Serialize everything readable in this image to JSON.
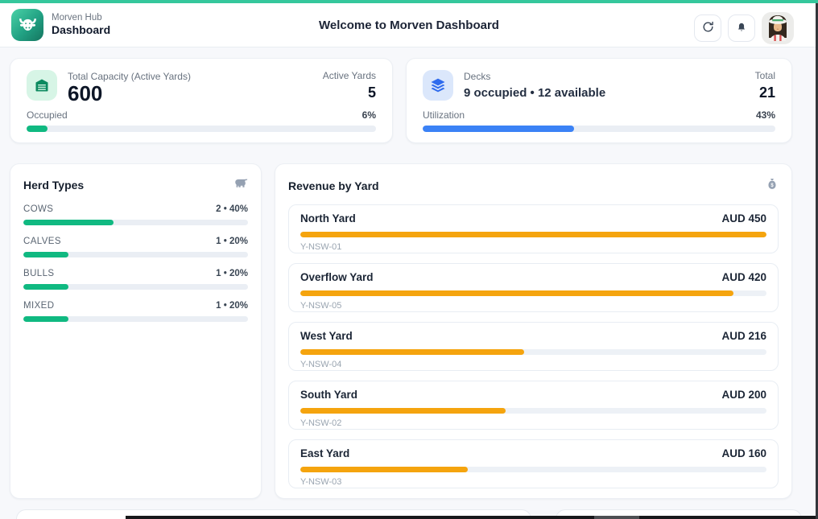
{
  "colors": {
    "accent_teal": "#35c79c",
    "green": "#10b981",
    "blue": "#3b82f6",
    "orange": "#f5a40e",
    "green_icon_bg": "#d7f5e6",
    "blue_icon_bg": "#dbe7fb"
  },
  "header": {
    "app_name": "Morven Hub",
    "app_section": "Dashboard",
    "title": "Welcome to Morven Dashboard",
    "logo_icon": "bull-icon",
    "refresh_icon": "refresh-icon",
    "notifications_icon": "bell-icon",
    "avatar_icon": "farmer-avatar"
  },
  "capacity_card": {
    "icon": "warehouse-icon",
    "label": "Total Capacity (Active Yards)",
    "value": "600",
    "side_label": "Active Yards",
    "side_value": "5",
    "progress_label": "Occupied",
    "progress_text": "6%",
    "progress_pct": 6
  },
  "decks_card": {
    "icon": "layers-icon",
    "label": "Decks",
    "value": "9 occupied • 12 available",
    "side_label": "Total",
    "side_value": "21",
    "progress_label": "Utilization",
    "progress_text": "43%",
    "progress_pct": 43
  },
  "herd": {
    "title": "Herd Types",
    "icon": "cow-icon",
    "rows": [
      {
        "label": "COWS",
        "value": "2 • 40%",
        "pct": 40
      },
      {
        "label": "CALVES",
        "value": "1 • 20%",
        "pct": 20
      },
      {
        "label": "BULLS",
        "value": "1 • 20%",
        "pct": 20
      },
      {
        "label": "MIXED",
        "value": "1 • 20%",
        "pct": 20
      }
    ]
  },
  "revenue": {
    "title": "Revenue by Yard",
    "icon": "money-bag-icon",
    "items": [
      {
        "name": "North Yard",
        "amount": "AUD 450",
        "code": "Y-NSW-01",
        "pct": 100
      },
      {
        "name": "Overflow Yard",
        "amount": "AUD 420",
        "code": "Y-NSW-05",
        "pct": 93
      },
      {
        "name": "West Yard",
        "amount": "AUD 216",
        "code": "Y-NSW-04",
        "pct": 48
      },
      {
        "name": "South Yard",
        "amount": "AUD 200",
        "code": "Y-NSW-02",
        "pct": 44
      },
      {
        "name": "East Yard",
        "amount": "AUD 160",
        "code": "Y-NSW-03",
        "pct": 36
      }
    ]
  },
  "chart_data": [
    {
      "type": "bar",
      "title": "Herd Types",
      "categories": [
        "COWS",
        "CALVES",
        "BULLS",
        "MIXED"
      ],
      "series": [
        {
          "name": "count",
          "values": [
            2,
            1,
            1,
            1
          ]
        },
        {
          "name": "percent",
          "values": [
            40,
            20,
            20,
            20
          ]
        }
      ],
      "legend_position": "none",
      "xlim": [
        0,
        100
      ]
    },
    {
      "type": "bar",
      "title": "Revenue by Yard",
      "categories": [
        "North Yard",
        "Overflow Yard",
        "West Yard",
        "South Yard",
        "East Yard"
      ],
      "values": [
        450,
        420,
        216,
        200,
        160
      ],
      "ylabel": "AUD",
      "annotations": [
        "Y-NSW-01",
        "Y-NSW-05",
        "Y-NSW-04",
        "Y-NSW-02",
        "Y-NSW-03"
      ],
      "xlim": [
        0,
        450
      ]
    }
  ]
}
